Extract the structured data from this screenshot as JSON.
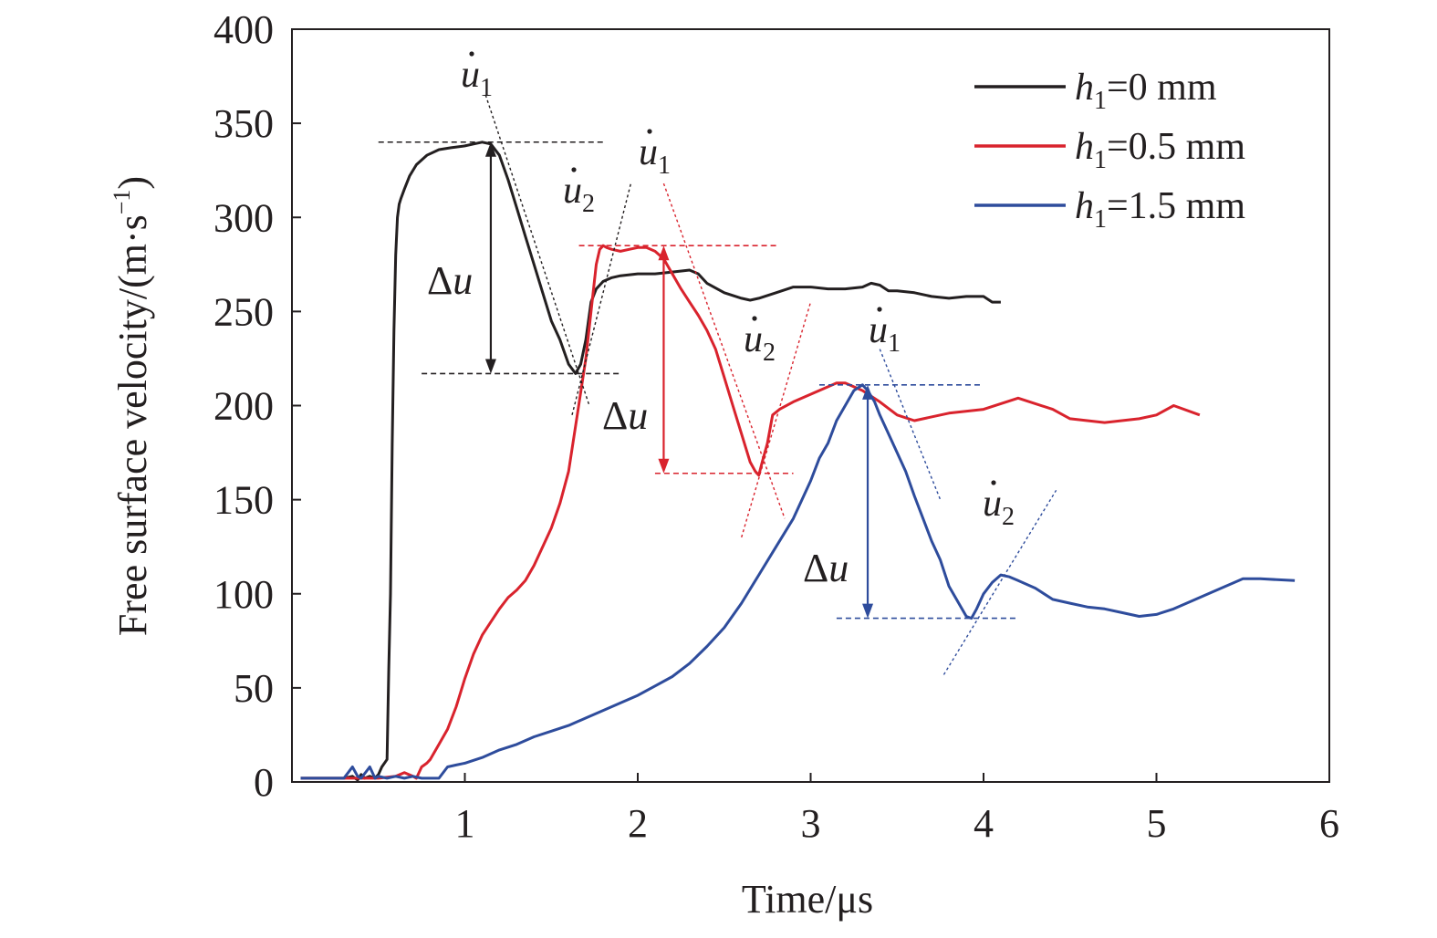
{
  "chart_data": {
    "type": "line",
    "title": "",
    "xlabel": "Time/μs",
    "ylabel": "Free surface velocity/(m·s",
    "ylabel_sup": "−1",
    "ylabel_close": ")",
    "xlim": [
      0,
      6
    ],
    "ylim": [
      0,
      400
    ],
    "xticks": [
      1,
      2,
      3,
      4,
      5,
      6
    ],
    "xtick_labels": [
      "1",
      "2",
      "3",
      "4",
      "5",
      "6"
    ],
    "yticks": [
      0,
      50,
      100,
      150,
      200,
      250,
      300,
      350,
      400
    ],
    "ytick_labels": [
      "0",
      "50",
      "100",
      "150",
      "200",
      "250",
      "300",
      "350",
      "400"
    ],
    "grid": false,
    "legend_position": "top-right",
    "series": [
      {
        "name": "h1=0 mm",
        "label_var": "h",
        "label_sub": "1",
        "label_rest": "=0 mm",
        "color": "#231f20",
        "x": [
          0.05,
          0.2,
          0.3,
          0.35,
          0.38,
          0.4,
          0.42,
          0.45,
          0.48,
          0.5,
          0.52,
          0.55,
          0.56,
          0.57,
          0.58,
          0.59,
          0.6,
          0.61,
          0.62,
          0.63,
          0.65,
          0.68,
          0.72,
          0.78,
          0.85,
          0.92,
          1.0,
          1.05,
          1.1,
          1.15,
          1.2,
          1.25,
          1.3,
          1.35,
          1.4,
          1.45,
          1.5,
          1.55,
          1.6,
          1.64,
          1.67,
          1.7,
          1.73,
          1.76,
          1.8,
          1.85,
          1.9,
          2.0,
          2.1,
          2.2,
          2.3,
          2.35,
          2.4,
          2.5,
          2.6,
          2.65,
          2.7,
          2.8,
          2.9,
          3.0,
          3.1,
          3.2,
          3.3,
          3.35,
          3.4,
          3.45,
          3.5,
          3.6,
          3.7,
          3.8,
          3.9,
          4.0,
          4.05,
          4.1
        ],
        "y": [
          2,
          2,
          2,
          3,
          1,
          4,
          2,
          3,
          2,
          4,
          8,
          12,
          60,
          100,
          180,
          240,
          280,
          300,
          307,
          310,
          315,
          322,
          328,
          333,
          336,
          337,
          338,
          339,
          340,
          339,
          333,
          320,
          305,
          290,
          275,
          260,
          245,
          235,
          222,
          217,
          222,
          235,
          255,
          262,
          266,
          268,
          269,
          270,
          270,
          271,
          272,
          270,
          265,
          260,
          257,
          256,
          257,
          260,
          263,
          263,
          262,
          262,
          263,
          265,
          264,
          261,
          261,
          260,
          258,
          257,
          258,
          258,
          255,
          255
        ]
      },
      {
        "name": "h1=0.5 mm",
        "label_var": "h",
        "label_sub": "1",
        "label_rest": "=0.5 mm",
        "color": "#d9232d",
        "x": [
          0.05,
          0.3,
          0.5,
          0.6,
          0.65,
          0.7,
          0.72,
          0.75,
          0.78,
          0.8,
          0.85,
          0.9,
          0.95,
          1.0,
          1.05,
          1.1,
          1.15,
          1.2,
          1.25,
          1.3,
          1.35,
          1.4,
          1.45,
          1.5,
          1.55,
          1.6,
          1.65,
          1.7,
          1.73,
          1.76,
          1.78,
          1.8,
          1.82,
          1.85,
          1.9,
          1.95,
          2.0,
          2.05,
          2.1,
          2.15,
          2.2,
          2.25,
          2.3,
          2.35,
          2.4,
          2.45,
          2.5,
          2.55,
          2.6,
          2.65,
          2.68,
          2.7,
          2.72,
          2.75,
          2.78,
          2.82,
          2.9,
          3.0,
          3.1,
          3.15,
          3.2,
          3.3,
          3.4,
          3.5,
          3.6,
          3.8,
          4.0,
          4.2,
          4.4,
          4.5,
          4.6,
          4.7,
          4.8,
          4.9,
          5.0,
          5.1,
          5.25
        ],
        "y": [
          2,
          2,
          2,
          3,
          5,
          3,
          2,
          8,
          10,
          12,
          20,
          28,
          40,
          55,
          68,
          78,
          85,
          92,
          98,
          102,
          107,
          115,
          125,
          135,
          148,
          165,
          195,
          225,
          250,
          275,
          283,
          285,
          284,
          283,
          282,
          283,
          284,
          284,
          282,
          278,
          270,
          262,
          255,
          248,
          240,
          230,
          215,
          200,
          185,
          170,
          165,
          163,
          170,
          180,
          195,
          198,
          202,
          206,
          210,
          212,
          212,
          208,
          202,
          195,
          192,
          196,
          198,
          204,
          198,
          193,
          192,
          191,
          192,
          193,
          195,
          200,
          195
        ]
      },
      {
        "name": "h1=1.5 mm",
        "label_var": "h",
        "label_sub": "1",
        "label_rest": "=1.5 mm",
        "color": "#2e4c9c",
        "x": [
          0.05,
          0.3,
          0.35,
          0.38,
          0.4,
          0.45,
          0.48,
          0.5,
          0.55,
          0.6,
          0.65,
          0.7,
          0.75,
          0.85,
          0.9,
          0.95,
          1.0,
          1.1,
          1.2,
          1.3,
          1.4,
          1.5,
          1.6,
          1.7,
          1.8,
          1.9,
          2.0,
          2.1,
          2.2,
          2.3,
          2.4,
          2.5,
          2.6,
          2.7,
          2.8,
          2.9,
          3.0,
          3.05,
          3.1,
          3.15,
          3.2,
          3.25,
          3.3,
          3.33,
          3.37,
          3.4,
          3.45,
          3.5,
          3.55,
          3.6,
          3.65,
          3.7,
          3.75,
          3.8,
          3.85,
          3.9,
          3.93,
          3.96,
          4.0,
          4.05,
          4.1,
          4.15,
          4.2,
          4.3,
          4.4,
          4.5,
          4.6,
          4.7,
          4.8,
          4.9,
          5.0,
          5.1,
          5.2,
          5.3,
          5.4,
          5.5,
          5.6,
          5.8
        ],
        "y": [
          2,
          2,
          8,
          3,
          2,
          8,
          2,
          3,
          2,
          3,
          2,
          3,
          2,
          2,
          8,
          9,
          10,
          13,
          17,
          20,
          24,
          27,
          30,
          34,
          38,
          42,
          46,
          51,
          56,
          63,
          72,
          82,
          95,
          110,
          125,
          140,
          160,
          172,
          180,
          192,
          200,
          208,
          211,
          208,
          202,
          195,
          185,
          175,
          165,
          152,
          140,
          128,
          118,
          104,
          96,
          88,
          87,
          92,
          100,
          106,
          110,
          109,
          107,
          103,
          97,
          95,
          93,
          92,
          90,
          88,
          89,
          92,
          96,
          100,
          104,
          108,
          108,
          107
        ]
      }
    ],
    "annotations": {
      "h0": {
        "u1_label": "u",
        "u1_sub": "1",
        "u2_label": "u",
        "u2_sub": "2",
        "delta_label": "Δu",
        "peak": [
          1.15,
          340
        ],
        "trough": [
          1.67,
          217
        ]
      },
      "h05": {
        "u1_label": "u",
        "u1_sub": "1",
        "u2_label": "u",
        "u2_sub": "2",
        "delta_label": "Δu",
        "peak": [
          2.15,
          285
        ],
        "trough": [
          2.7,
          164
        ]
      },
      "h15": {
        "u1_label": "u",
        "u1_sub": "1",
        "u2_label": "u",
        "u2_sub": "2",
        "delta_label": "Δu",
        "peak": [
          3.33,
          211
        ],
        "trough": [
          3.95,
          87
        ]
      }
    }
  }
}
